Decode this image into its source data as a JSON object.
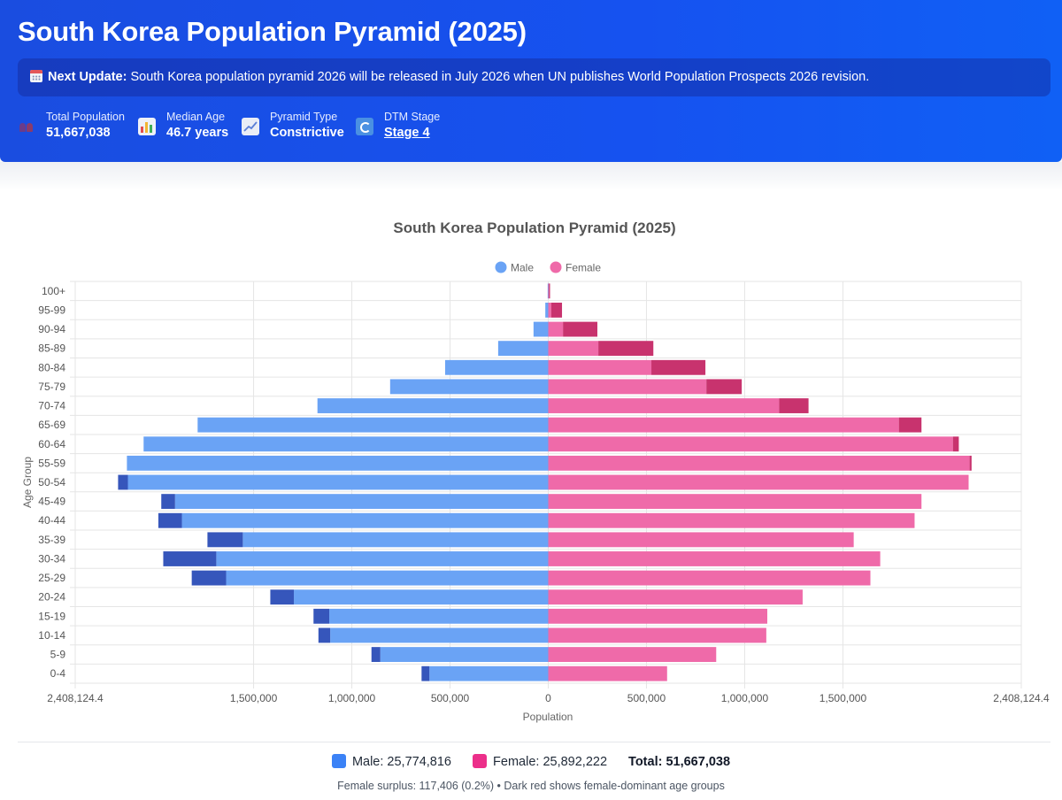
{
  "header": {
    "title": "South Korea Population Pyramid (2025)",
    "notice_label": "Next Update:",
    "notice_text": "South Korea population pyramid 2026 will be released in July 2026 when UN publishes World Population Prospects 2026 revision.",
    "stats": [
      {
        "label": "Total Population",
        "value": "51,667,038",
        "icon": "people-icon"
      },
      {
        "label": "Median Age",
        "value": "46.7 years",
        "icon": "bar-chart-icon"
      },
      {
        "label": "Pyramid Type",
        "value": "Constrictive",
        "icon": "line-chart-icon"
      },
      {
        "label": "DTM Stage",
        "value": "Stage 4",
        "icon": "refresh-icon"
      }
    ]
  },
  "chart_data": {
    "type": "bar",
    "orientation": "horizontal",
    "title": "South Korea Population Pyramid (2025)",
    "xlabel": "Population",
    "ylabel": "Age Group",
    "xlim": [
      -2408124.4,
      2408124.4
    ],
    "x_ticks": [
      "2,408,124.4",
      "1,500,000",
      "1,000,000",
      "500,000",
      "0",
      "500,000",
      "1,000,000",
      "1,500,000",
      "2,408,124.4"
    ],
    "grid": true,
    "legend_position": "top",
    "categories": [
      "100+",
      "95-99",
      "90-94",
      "85-89",
      "80-84",
      "75-79",
      "70-74",
      "65-69",
      "60-64",
      "55-59",
      "50-54",
      "45-49",
      "40-44",
      "35-39",
      "30-34",
      "25-29",
      "20-24",
      "15-19",
      "10-14",
      "5-9",
      "0-4"
    ],
    "series": [
      {
        "name": "Male",
        "color": "#6aa3f5",
        "values": [
          3000,
          15000,
          75000,
          255000,
          525000,
          805000,
          1175000,
          1785000,
          2060000,
          2145000,
          2190000,
          1970000,
          1985000,
          1735000,
          1960000,
          1815000,
          1415000,
          1195000,
          1170000,
          900000,
          645000
        ]
      },
      {
        "name": "Female",
        "color": "#ef6aa9",
        "values": [
          9000,
          70000,
          250000,
          535000,
          800000,
          985000,
          1325000,
          1900000,
          2090000,
          2155000,
          2140000,
          1900000,
          1865000,
          1555000,
          1690000,
          1640000,
          1295000,
          1115000,
          1110000,
          855000,
          605000
        ]
      }
    ],
    "surplus_colors": {
      "male": "#3656bb",
      "female": "#c8336e"
    }
  },
  "summary": {
    "male_label": "Male: 25,774,816",
    "female_label": "Female: 25,892,222",
    "total_label": "Total: 51,667,038",
    "male_color": "#3b82f6",
    "female_color": "#ec2f8a",
    "footnote": "Female surplus: 117,406 (0.2%) • Dark red shows female-dominant age groups"
  }
}
